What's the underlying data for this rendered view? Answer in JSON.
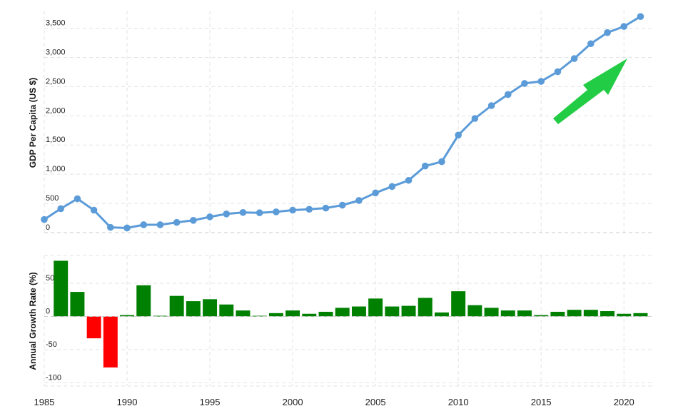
{
  "chart_data": [
    {
      "type": "line",
      "ylabel": "GDP Per Capita (US $)",
      "ylim": [
        0,
        3800
      ],
      "ytick_values": [
        0,
        500,
        1000,
        1500,
        2000,
        2500,
        3000,
        3500
      ],
      "ytick_labels": [
        "0",
        "500",
        "1,000",
        "1,500",
        "2,000",
        "2,500",
        "3,000",
        "3,500"
      ],
      "xlim": [
        1985,
        2021.8
      ],
      "grid": true,
      "color": "#5b9bd8",
      "x": [
        1985,
        1986,
        1987,
        1988,
        1989,
        1990,
        1991,
        1992,
        1993,
        1994,
        1995,
        1996,
        1997,
        1998,
        1999,
        2000,
        2001,
        2002,
        2003,
        2004,
        2005,
        2006,
        2007,
        2008,
        2009,
        2010,
        2011,
        2012,
        2013,
        2014,
        2015,
        2016,
        2017,
        2018,
        2019,
        2020,
        2021
      ],
      "values": [
        225,
        410,
        580,
        385,
        90,
        80,
        135,
        135,
        175,
        210,
        270,
        320,
        345,
        340,
        355,
        385,
        400,
        420,
        470,
        550,
        680,
        790,
        895,
        1140,
        1215,
        1670,
        1955,
        2175,
        2365,
        2555,
        2590,
        2755,
        2980,
        3235,
        3425,
        3530,
        3700
      ],
      "annotation": {
        "type": "arrow",
        "color": "#22cc44",
        "meaning": "upward trend"
      }
    },
    {
      "type": "bar",
      "ylabel": "Annual Growth Rate (%)",
      "ylim": [
        -105,
        92
      ],
      "ytick_values": [
        -100,
        -50,
        0,
        50
      ],
      "ytick_labels": [
        "-100",
        "-50",
        "0",
        "50"
      ],
      "xlim": [
        1985,
        2021.8
      ],
      "grid": true,
      "positive_color": "#008000",
      "negative_color": "#ff0000",
      "x": [
        1986,
        1987,
        1988,
        1989,
        1990,
        1991,
        1992,
        1993,
        1994,
        1995,
        1996,
        1997,
        1998,
        1999,
        2000,
        2001,
        2002,
        2003,
        2004,
        2005,
        2006,
        2007,
        2008,
        2009,
        2010,
        2011,
        2012,
        2013,
        2014,
        2015,
        2016,
        2017,
        2018,
        2019,
        2020,
        2021
      ],
      "values": [
        84,
        37,
        -33,
        -77,
        2,
        47,
        1,
        31,
        23,
        26,
        18,
        9,
        1,
        5,
        9,
        4,
        7,
        13,
        15,
        27,
        15,
        16,
        28,
        6,
        38,
        17,
        13,
        9,
        9,
        2,
        7,
        10,
        10,
        8,
        4,
        5
      ],
      "xtick_values": [
        1985,
        1990,
        1995,
        2000,
        2005,
        2010,
        2015,
        2020
      ],
      "xtick_labels": [
        "1985",
        "1990",
        "1995",
        "2000",
        "2005",
        "2010",
        "2015",
        "2020"
      ]
    }
  ]
}
